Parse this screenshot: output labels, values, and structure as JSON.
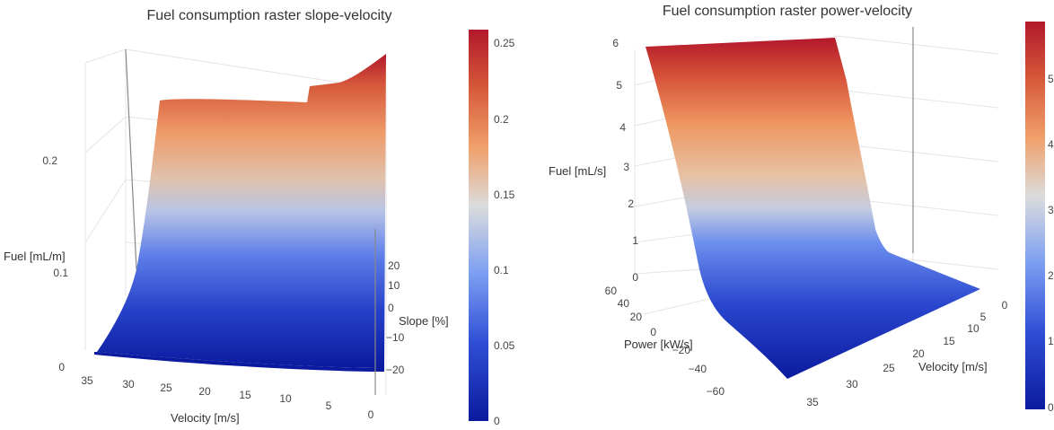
{
  "chart_data": [
    {
      "type": "surface3d",
      "title": "Fuel consumption raster slope-velocity",
      "x_axis": {
        "label": "Velocity [m/s]",
        "ticks": [
          "35",
          "30",
          "25",
          "20",
          "15",
          "10",
          "5",
          "0"
        ],
        "range": [
          0,
          38
        ]
      },
      "y_axis": {
        "label": "Slope [%]",
        "ticks": [
          "20",
          "10",
          "0",
          "−10",
          "−20"
        ],
        "range": [
          -25,
          25
        ]
      },
      "z_axis": {
        "label": "Fuel [mL/m]",
        "ticks": [
          "0",
          "0.1",
          "0.2"
        ],
        "range": [
          0,
          0.26
        ]
      },
      "colorbar": {
        "ticks": [
          "0.25",
          "0.2",
          "0.15",
          "0.1",
          "0.05",
          "0"
        ],
        "range": [
          0,
          0.26
        ],
        "colorscale": [
          "#0b1a9e",
          "#2f4fd6",
          "#7ea0f2",
          "#dcdcdc",
          "#f0a06a",
          "#d65a3a",
          "#b2182b"
        ]
      },
      "profile_velocity": [
        0,
        1,
        2,
        3,
        5,
        10,
        15,
        20,
        25,
        30,
        35
      ],
      "profile_fuel": [
        0.26,
        0.24,
        0.23,
        0.22,
        0.21,
        0.215,
        0.215,
        0.215,
        0.215,
        0.215,
        0.215
      ]
    },
    {
      "type": "surface3d",
      "title": "Fuel consumption raster power-velocity",
      "x_axis": {
        "label": "Velocity [m/s]",
        "ticks": [
          "35",
          "30",
          "25",
          "20",
          "15",
          "10",
          "5",
          "0"
        ],
        "range": [
          0,
          38
        ]
      },
      "y_axis": {
        "label": "Power [kW/s]",
        "ticks": [
          "60",
          "40",
          "20",
          "0",
          "−20",
          "−40",
          "−60"
        ],
        "range": [
          -70,
          70
        ]
      },
      "z_axis": {
        "label": "Fuel [mL/s]",
        "ticks": [
          "0",
          "1",
          "2",
          "3",
          "4",
          "5",
          "6"
        ],
        "range": [
          0,
          6
        ]
      },
      "colorbar": {
        "ticks": [
          "5",
          "4",
          "3",
          "2",
          "1",
          "0"
        ],
        "range": [
          0,
          5.6
        ],
        "colorscale": [
          "#0b1a9e",
          "#2f4fd6",
          "#7ea0f2",
          "#dcdcdc",
          "#f0a06a",
          "#d65a3a",
          "#b2182b"
        ]
      }
    }
  ]
}
